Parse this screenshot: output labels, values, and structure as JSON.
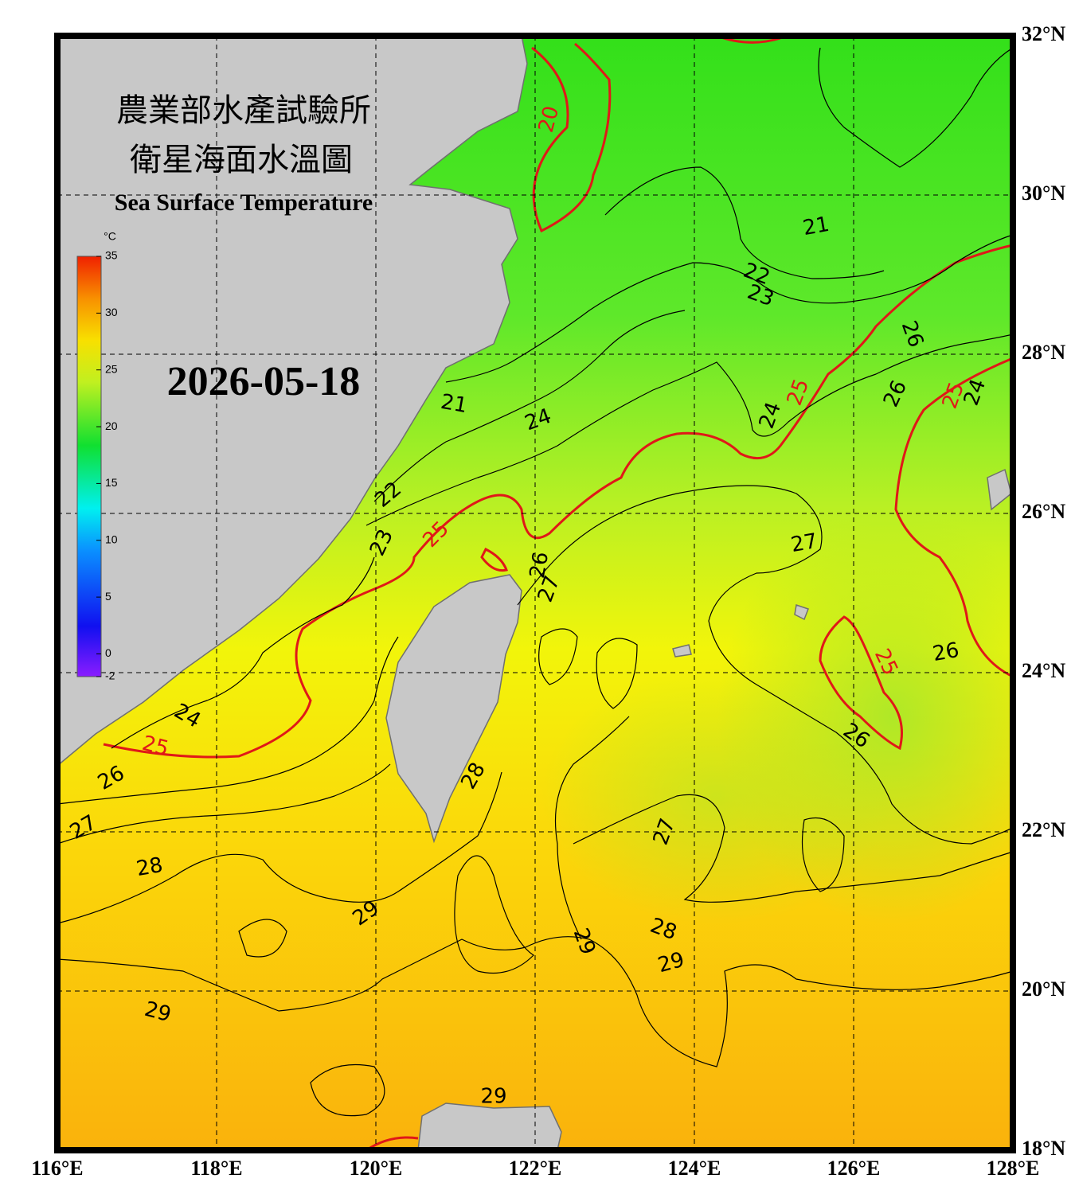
{
  "header": {
    "title_zh": "農業部水產試驗所",
    "subtitle_zh": "衛星海面水溫圖",
    "title_en": "Sea Surface Temperature",
    "date": "2026-05-18"
  },
  "colorbar": {
    "unit": "°C",
    "range": [
      -2,
      35
    ],
    "ticks": [
      35,
      30,
      25,
      20,
      15,
      10,
      5,
      0,
      -2
    ]
  },
  "map": {
    "lonlim": [
      116,
      128
    ],
    "latlim": [
      18,
      32
    ],
    "lon_ticks": [
      {
        "value": 116,
        "label": "116°E"
      },
      {
        "value": 118,
        "label": "118°E"
      },
      {
        "value": 120,
        "label": "120°E"
      },
      {
        "value": 122,
        "label": "122°E"
      },
      {
        "value": 124,
        "label": "124°E"
      },
      {
        "value": 126,
        "label": "126°E"
      },
      {
        "value": 128,
        "label": "128°E"
      }
    ],
    "lat_ticks": [
      {
        "value": 32,
        "label": "32°N"
      },
      {
        "value": 30,
        "label": "30°N"
      },
      {
        "value": 28,
        "label": "28°N"
      },
      {
        "value": 26,
        "label": "26°N"
      },
      {
        "value": 24,
        "label": "24°N"
      },
      {
        "value": 22,
        "label": "22°N"
      },
      {
        "value": 20,
        "label": "20°N"
      },
      {
        "value": 18,
        "label": "18°N"
      }
    ]
  },
  "contour_labels": [
    {
      "label": "20",
      "color": "#e01818"
    },
    {
      "label": "21",
      "color": "#000000"
    },
    {
      "label": "22",
      "color": "#000000"
    },
    {
      "label": "23",
      "color": "#000000"
    },
    {
      "label": "26",
      "color": "#000000"
    },
    {
      "label": "21",
      "color": "#000000"
    },
    {
      "label": "24",
      "color": "#000000"
    },
    {
      "label": "25",
      "color": "#e01818"
    },
    {
      "label": "24",
      "color": "#000000"
    },
    {
      "label": "26",
      "color": "#000000"
    },
    {
      "label": "25",
      "color": "#e01818"
    },
    {
      "label": "24",
      "color": "#000000"
    },
    {
      "label": "22",
      "color": "#000000"
    },
    {
      "label": "25",
      "color": "#e01818"
    },
    {
      "label": "23",
      "color": "#000000"
    },
    {
      "label": "27",
      "color": "#000000"
    },
    {
      "label": "26",
      "color": "#000000"
    },
    {
      "label": "27",
      "color": "#000000"
    },
    {
      "label": "26",
      "color": "#000000"
    },
    {
      "label": "25",
      "color": "#e01818"
    },
    {
      "label": "24",
      "color": "#000000"
    },
    {
      "label": "25",
      "color": "#e01818"
    },
    {
      "label": "26",
      "color": "#000000"
    },
    {
      "label": "26",
      "color": "#000000"
    },
    {
      "label": "28",
      "color": "#000000"
    },
    {
      "label": "27",
      "color": "#000000"
    },
    {
      "label": "27",
      "color": "#000000"
    },
    {
      "label": "28",
      "color": "#000000"
    },
    {
      "label": "29",
      "color": "#000000"
    },
    {
      "label": "28",
      "color": "#000000"
    },
    {
      "label": "29",
      "color": "#000000"
    },
    {
      "label": "29",
      "color": "#000000"
    },
    {
      "label": "29",
      "color": "#000000"
    },
    {
      "label": "29",
      "color": "#000000"
    }
  ]
}
